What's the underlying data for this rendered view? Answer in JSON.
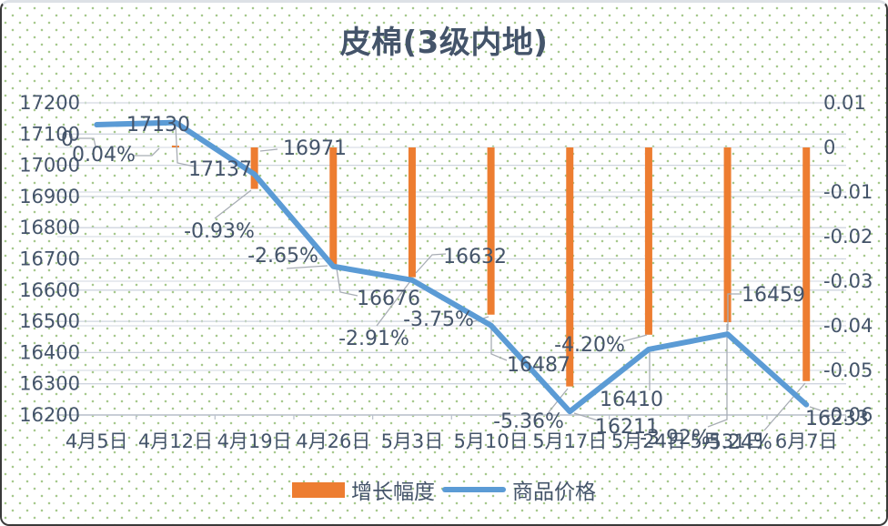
{
  "chart_data": {
    "type": "combo",
    "title": "皮棉(3级内地)",
    "categories": [
      "4月5日",
      "4月12日",
      "4月19日",
      "4月26日",
      "5月3日",
      "5月10日",
      "5月17日",
      "5月24日",
      "5月31日",
      "6月7日"
    ],
    "series": [
      {
        "name": "增长幅度",
        "type": "bar",
        "axis": "right",
        "color": "#ED7D31",
        "values": [
          0,
          0.0004,
          -0.0093,
          -0.0265,
          -0.0291,
          -0.0375,
          -0.0536,
          -0.042,
          -0.0392,
          -0.0524
        ],
        "data_labels": [
          "0",
          "0.04%",
          "-0.93%",
          "-2.65%",
          "-2.91%",
          "-3.75%",
          "-5.36%",
          "-4.20%",
          "-3.92%",
          "-5.24%"
        ]
      },
      {
        "name": "商品价格",
        "type": "line",
        "axis": "left",
        "color": "#5B9BD5",
        "values": [
          17130,
          17137,
          16971,
          16676,
          16632,
          16487,
          16211,
          16410,
          16459,
          16233
        ],
        "data_labels": [
          "17130",
          "17137",
          "16971",
          "16676",
          "16632",
          "16487",
          "16211",
          "16410",
          "16459",
          "16233"
        ]
      }
    ],
    "left_axis": {
      "min": 16200,
      "max": 17200,
      "step": 100,
      "tick_labels": [
        "17200",
        "17100",
        "17000",
        "16900",
        "16800",
        "16700",
        "16600",
        "16500",
        "16400",
        "16300",
        "16200"
      ]
    },
    "right_axis": {
      "min": -0.06,
      "max": 0.01,
      "step": 0.01,
      "tick_labels": [
        "0.01",
        "0",
        "-0.01",
        "-0.02",
        "-0.03",
        "-0.04",
        "-0.05",
        "-0.06"
      ]
    },
    "legend": {
      "position": "bottom",
      "entries": [
        {
          "label": "增长幅度",
          "color": "#ED7D31",
          "shape": "rect"
        },
        {
          "label": "商品价格",
          "color": "#5B9BD5",
          "shape": "line"
        }
      ]
    },
    "grid": true,
    "text_color": "#44546A",
    "gridline_color": "#cfd5df"
  }
}
